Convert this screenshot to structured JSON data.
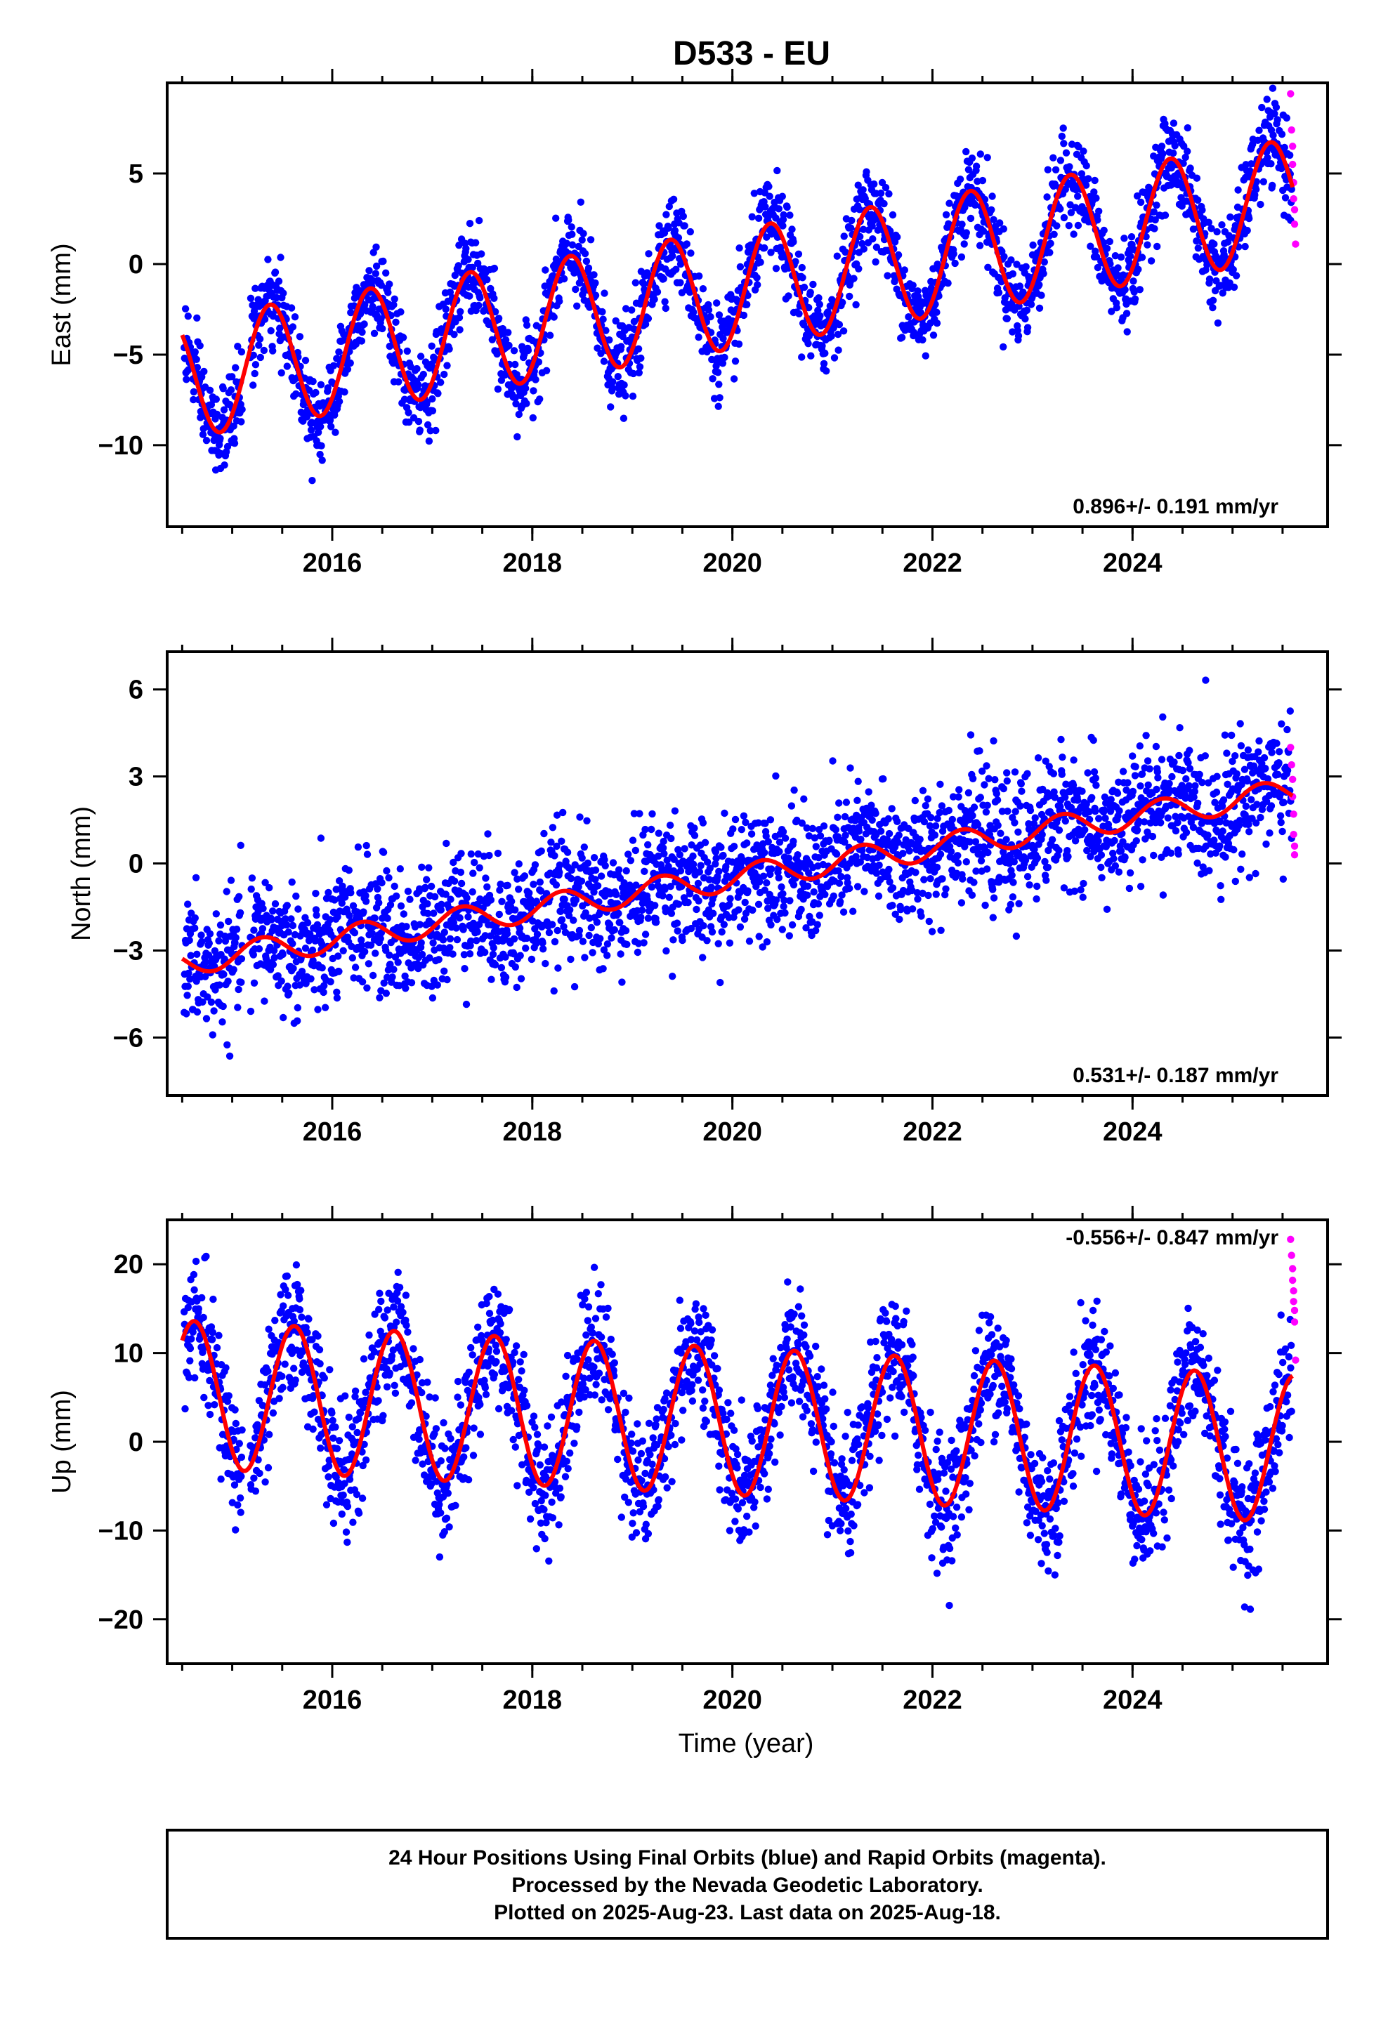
{
  "figure": {
    "title": "D533 - EU",
    "footer": [
      "24 Hour Positions Using Final Orbits (blue) and Rapid Orbits (magenta).",
      "Processed by the Nevada Geodetic Laboratory.",
      "Plotted on 2025-Aug-23. Last data on 2025-Aug-18."
    ],
    "colors": {
      "final": "#0000ff",
      "rapid": "#ff00ff",
      "model": "#ff0000",
      "axis": "#000000"
    }
  },
  "chart_data": [
    {
      "type": "scatter",
      "panel": "east",
      "ylabel": "East (mm)",
      "xlabel": "",
      "rate_label": "0.896+/- 0.191 mm/yr",
      "xlim": [
        2014.35,
        2025.95
      ],
      "ylim": [
        -14.5,
        10
      ],
      "x_ticks": [
        2016,
        2018,
        2020,
        2022,
        2024
      ],
      "y_ticks": [
        -10,
        -5,
        0,
        5
      ],
      "model": {
        "type": "line",
        "start": 2014.5,
        "end": 2025.6,
        "offset_2020": -1.4,
        "rate_mm_per_yr": 0.896,
        "annual_amplitude": 3.3,
        "annual_peak": 2020.38
      },
      "noise_mm": 1.2,
      "rapid_points": [
        [
          2025.58,
          9.4
        ],
        [
          2025.59,
          7.4
        ],
        [
          2025.6,
          6.5
        ],
        [
          2025.6,
          5.5
        ],
        [
          2025.61,
          4.5
        ],
        [
          2025.61,
          3.6
        ],
        [
          2025.62,
          3.0
        ],
        [
          2025.62,
          2.2
        ],
        [
          2025.63,
          1.1
        ]
      ]
    },
    {
      "type": "scatter",
      "panel": "north",
      "ylabel": "North (mm)",
      "xlabel": "",
      "rate_label": "0.531+/- 0.187 mm/yr",
      "xlim": [
        2014.35,
        2025.95
      ],
      "ylim": [
        -8,
        7.3
      ],
      "x_ticks": [
        2016,
        2018,
        2020,
        2022,
        2024
      ],
      "y_ticks": [
        -6,
        -3,
        0,
        3,
        6
      ],
      "model": {
        "type": "line",
        "start": 2014.5,
        "end": 2025.6,
        "offset_2020": -0.5,
        "rate_mm_per_yr": 0.531,
        "annual_amplitude": 0.45,
        "annual_peak": 2020.3
      },
      "noise_mm": 1.1,
      "rapid_points": [
        [
          2025.58,
          4.0
        ],
        [
          2025.59,
          3.4
        ],
        [
          2025.6,
          2.9
        ],
        [
          2025.6,
          2.3
        ],
        [
          2025.61,
          1.7
        ],
        [
          2025.61,
          1.0
        ],
        [
          2025.62,
          0.6
        ],
        [
          2025.62,
          0.3
        ]
      ]
    },
    {
      "type": "scatter",
      "panel": "up",
      "ylabel": "Up (mm)",
      "xlabel": "Time (year)",
      "rate_label": "-0.556+/- 0.847 mm/yr",
      "xlim": [
        2014.35,
        2025.95
      ],
      "ylim": [
        -25,
        25
      ],
      "x_ticks": [
        2016,
        2018,
        2020,
        2022,
        2024
      ],
      "y_ticks": [
        -20,
        -10,
        0,
        10,
        20
      ],
      "model": {
        "type": "line",
        "start": 2014.5,
        "end": 2025.6,
        "offset_2020": 2.3,
        "rate_mm_per_yr": -0.556,
        "annual_amplitude": 8.3,
        "annual_peak": 2020.62
      },
      "noise_mm": 3.5,
      "rapid_points": [
        [
          2025.58,
          22.8
        ],
        [
          2025.59,
          21.0
        ],
        [
          2025.6,
          19.5
        ],
        [
          2025.6,
          18.2
        ],
        [
          2025.61,
          17.0
        ],
        [
          2025.61,
          15.8
        ],
        [
          2025.62,
          14.8
        ],
        [
          2025.62,
          13.5
        ],
        [
          2025.63,
          9.2
        ]
      ]
    }
  ]
}
